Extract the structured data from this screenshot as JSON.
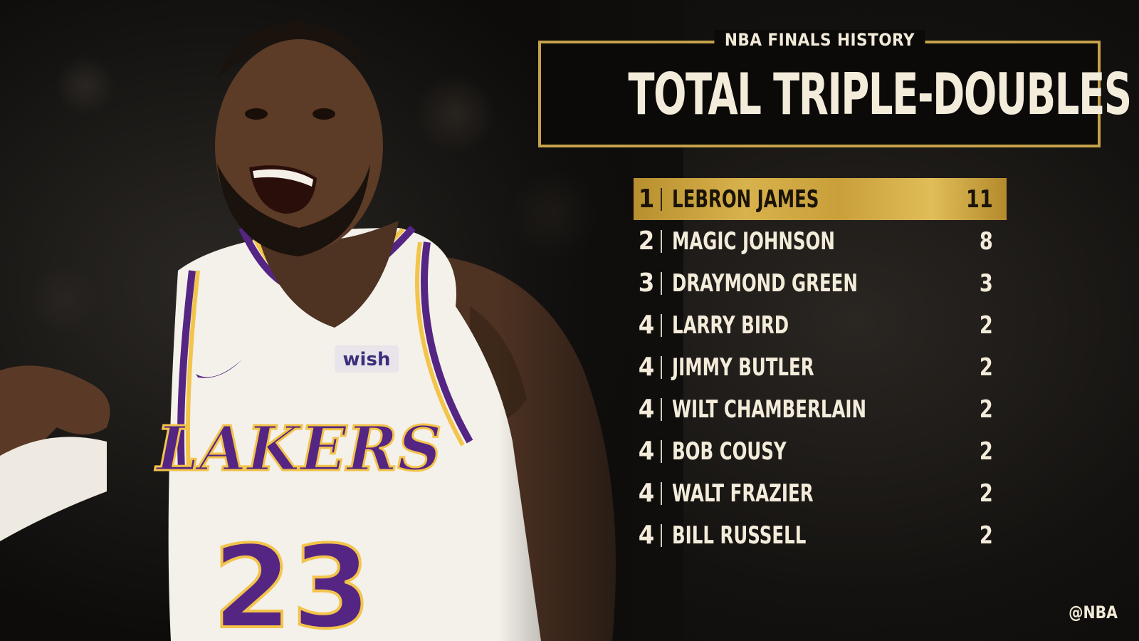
{
  "header": {
    "subtitle": "NBA FINALS HISTORY",
    "title": "TOTAL TRIPLE-DOUBLES"
  },
  "photo": {
    "jersey_team": "LAKERS",
    "jersey_number": "23",
    "jersey_sponsor": "wish",
    "jersey_colors": {
      "base": "#f4f1ea",
      "purple": "#552583",
      "gold": "#f3c44a"
    }
  },
  "leaderboard": [
    {
      "rank": "1",
      "name": "LEBRON JAMES",
      "value": "11"
    },
    {
      "rank": "2",
      "name": "MAGIC JOHNSON",
      "value": "8"
    },
    {
      "rank": "3",
      "name": "DRAYMOND GREEN",
      "value": "3"
    },
    {
      "rank": "4",
      "name": "LARRY BIRD",
      "value": "2"
    },
    {
      "rank": "4",
      "name": "JIMMY BUTLER",
      "value": "2"
    },
    {
      "rank": "4",
      "name": "WILT CHAMBERLAIN",
      "value": "2"
    },
    {
      "rank": "4",
      "name": "BOB COUSY",
      "value": "2"
    },
    {
      "rank": "4",
      "name": "WALT FRAZIER",
      "value": "2"
    },
    {
      "rank": "4",
      "name": "BILL RUSSELL",
      "value": "2"
    }
  ],
  "credit": "@NBA",
  "colors": {
    "accent_gold": "#c6a24a",
    "text_cream": "#f4ecda",
    "background": "#0d0c0b"
  }
}
